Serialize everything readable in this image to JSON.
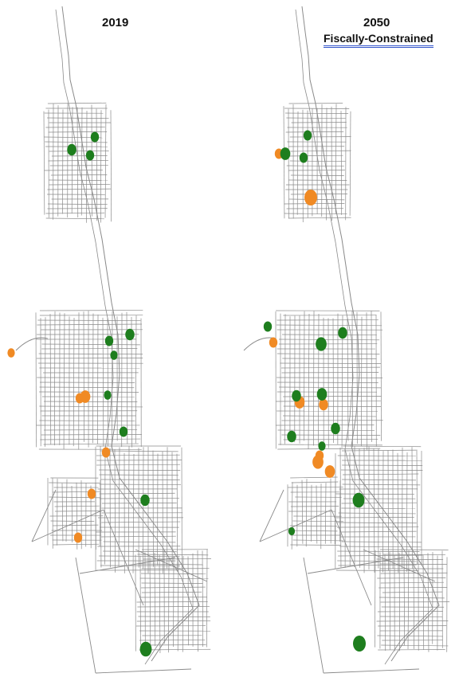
{
  "panels": [
    {
      "title": "2019",
      "subtitle": "",
      "hotspots": {
        "green": [
          [
            "north-1",
            0.5
          ],
          [
            "north-2",
            0.6
          ],
          [
            "north-3",
            0.5
          ],
          [
            "central-1",
            0.6
          ],
          [
            "central-2",
            0.5
          ],
          [
            "central-3",
            0.4
          ],
          [
            "central-4",
            0.4
          ],
          [
            "south-1",
            0.5
          ],
          [
            "south-2",
            0.6
          ],
          [
            "far-south-1",
            0.9
          ]
        ],
        "orange": [
          [
            "west-1",
            0.4
          ],
          [
            "central-5",
            0.7
          ],
          [
            "central-6",
            0.5
          ],
          [
            "south-3",
            0.5
          ],
          [
            "south-4",
            0.5
          ],
          [
            "south-5",
            0.5
          ]
        ]
      }
    },
    {
      "title": "2050",
      "subtitle": "Fiscally-Constrained",
      "hotspots": {
        "green": [
          [
            "north-1",
            0.5
          ],
          [
            "north-2",
            0.7
          ],
          [
            "north-3",
            0.5
          ],
          [
            "central-0",
            0.5
          ],
          [
            "central-1",
            0.6
          ],
          [
            "central-2",
            0.8
          ],
          [
            "central-3",
            0.7
          ],
          [
            "central-4",
            0.6
          ],
          [
            "central-5",
            0.6
          ],
          [
            "central-6",
            0.6
          ],
          [
            "south-1",
            0.9
          ],
          [
            "south-2",
            0.4
          ],
          [
            "south-3",
            0.3
          ],
          [
            "far-south-1",
            1.0
          ]
        ],
        "orange": [
          [
            "north-4",
            0.5
          ],
          [
            "north-5",
            1.0
          ],
          [
            "central-7",
            0.5
          ],
          [
            "central-8",
            0.7
          ],
          [
            "central-9",
            0.6
          ],
          [
            "south-4",
            0.8
          ],
          [
            "south-5",
            0.7
          ],
          [
            "south-6",
            0.5
          ]
        ]
      }
    }
  ],
  "colors": {
    "road": "#8a8a8a",
    "green": "#1e7e1e",
    "orange": "#f08a24"
  }
}
